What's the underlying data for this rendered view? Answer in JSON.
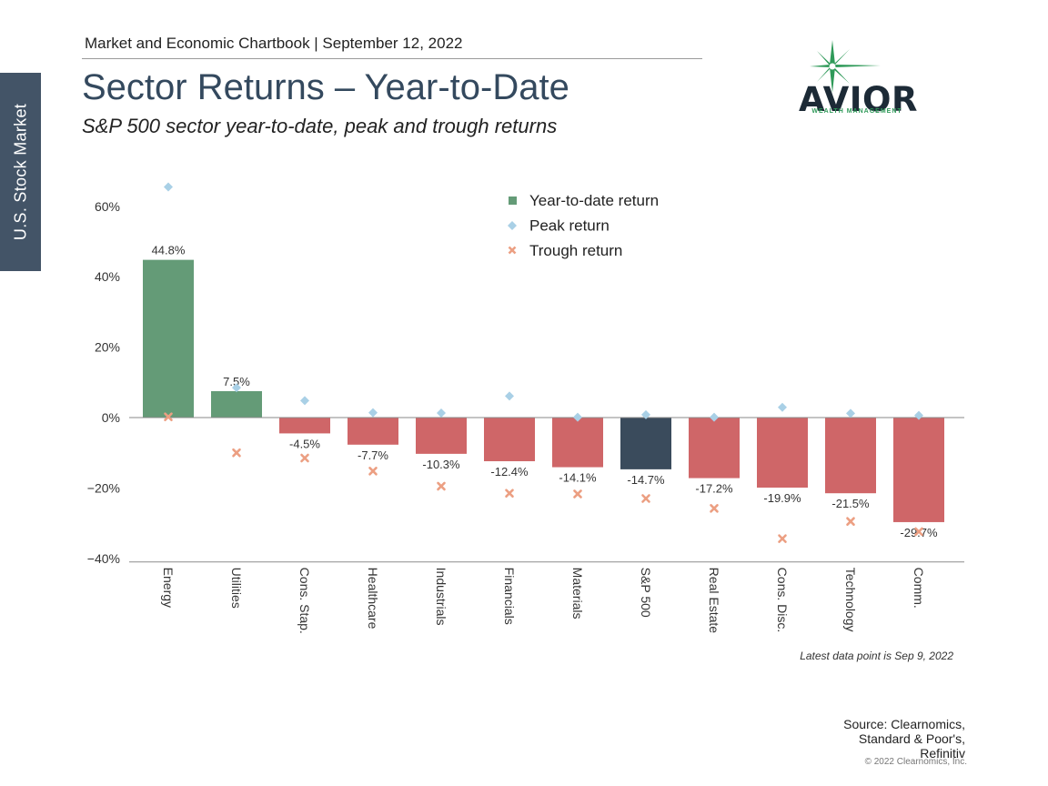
{
  "side_tab": "U.S. Stock Market",
  "header": "Market and Economic Chartbook | September 12, 2022",
  "title": "Sector Returns – Year-to-Date",
  "subtitle": "S&P 500 sector year-to-date, peak and trough returns",
  "logo": {
    "name": "AVIOR",
    "tagline": "WEALTH MANAGEMENT"
  },
  "chart_data": {
    "type": "bar",
    "categories": [
      "Energy",
      "Utilities",
      "Cons. Stap.",
      "Healthcare",
      "Industrials",
      "Financials",
      "Materials",
      "S&P 500",
      "Real Estate",
      "Cons. Disc.",
      "Technology",
      "Comm."
    ],
    "series": [
      {
        "name": "Year-to-date return",
        "values": [
          44.8,
          7.5,
          -4.5,
          -7.7,
          -10.3,
          -12.4,
          -14.1,
          -14.7,
          -17.2,
          -19.9,
          -21.5,
          -29.7
        ],
        "labels": [
          "44.8%",
          "7.5%",
          "-4.5%",
          "-7.7%",
          "-10.3%",
          "-12.4%",
          "-14.1%",
          "-14.7%",
          "-17.2%",
          "-19.9%",
          "-21.5%",
          "-29.7%"
        ]
      },
      {
        "name": "Peak return",
        "values": [
          65.5,
          8.5,
          4.8,
          1.4,
          1.3,
          6.1,
          0.1,
          0.8,
          0.1,
          2.9,
          1.2,
          0.6
        ]
      },
      {
        "name": "Trough return",
        "values": [
          0.2,
          -10.0,
          -11.5,
          -15.2,
          -19.5,
          -21.5,
          -21.7,
          -23.0,
          -25.8,
          -34.4,
          -29.5,
          -32.4
        ]
      }
    ],
    "yticks": [
      60,
      40,
      20,
      0,
      -20,
      -40
    ],
    "ytick_labels": [
      "60%",
      "40%",
      "20%",
      "0%",
      "−20%",
      "−40%"
    ],
    "ylim": [
      -41,
      68
    ],
    "legend_position": "top-center",
    "colors": {
      "positive": "#649b77",
      "negative": "#cf6668",
      "benchmark": "#3a4b5c",
      "peak": "#a9d0e6",
      "trough": "#ec9f82"
    },
    "note": "Latest data point is Sep 9, 2022"
  },
  "source": [
    "Source: Clearnomics,",
    "Standard & Poor's,",
    "Refinitiv"
  ],
  "copyright": "© 2022 Clearnomics, Inc."
}
